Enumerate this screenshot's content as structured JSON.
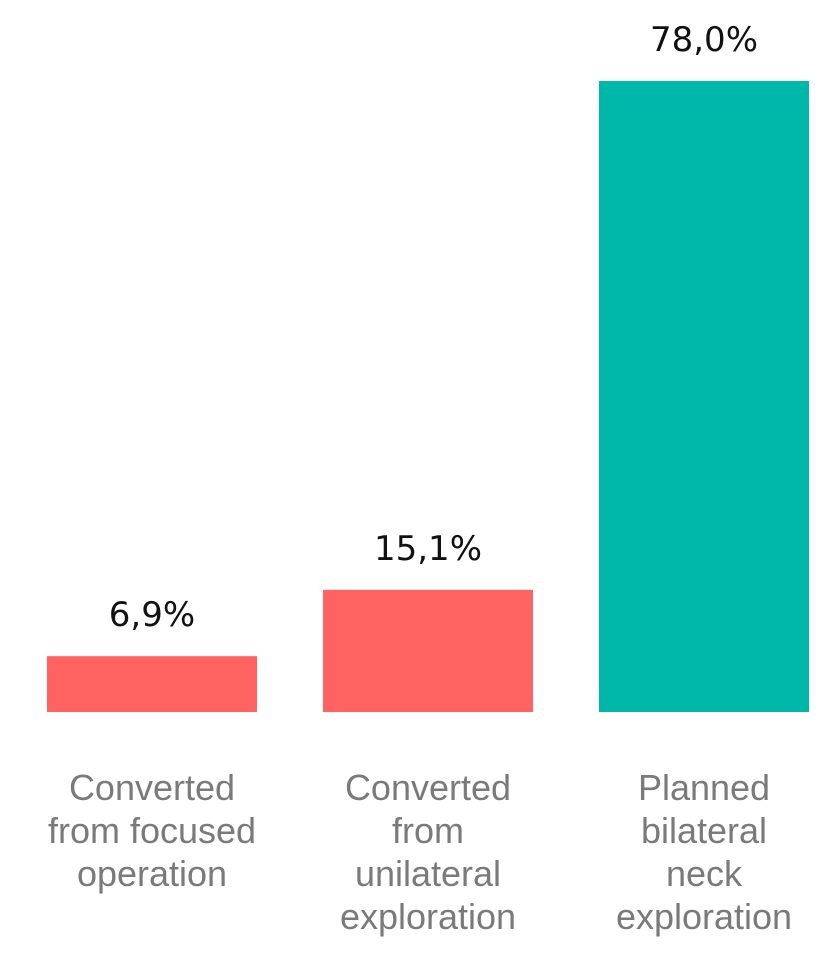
{
  "chart_data": {
    "type": "bar",
    "categories": [
      [
        "Converted",
        "from focused",
        "operation"
      ],
      [
        "Converted",
        "from",
        "unilateral",
        "exploration"
      ],
      [
        "Planned",
        "bilateral",
        "neck",
        "exploration"
      ]
    ],
    "values": [
      6.9,
      15.1,
      78.0
    ],
    "value_labels": [
      "6,9%",
      "15,1%",
      "78,0%"
    ],
    "colors": [
      "#ff6361",
      "#ff6361",
      "#00b8a9"
    ],
    "ylim": [
      0,
      78.0
    ],
    "grid": false,
    "legend": "none"
  }
}
